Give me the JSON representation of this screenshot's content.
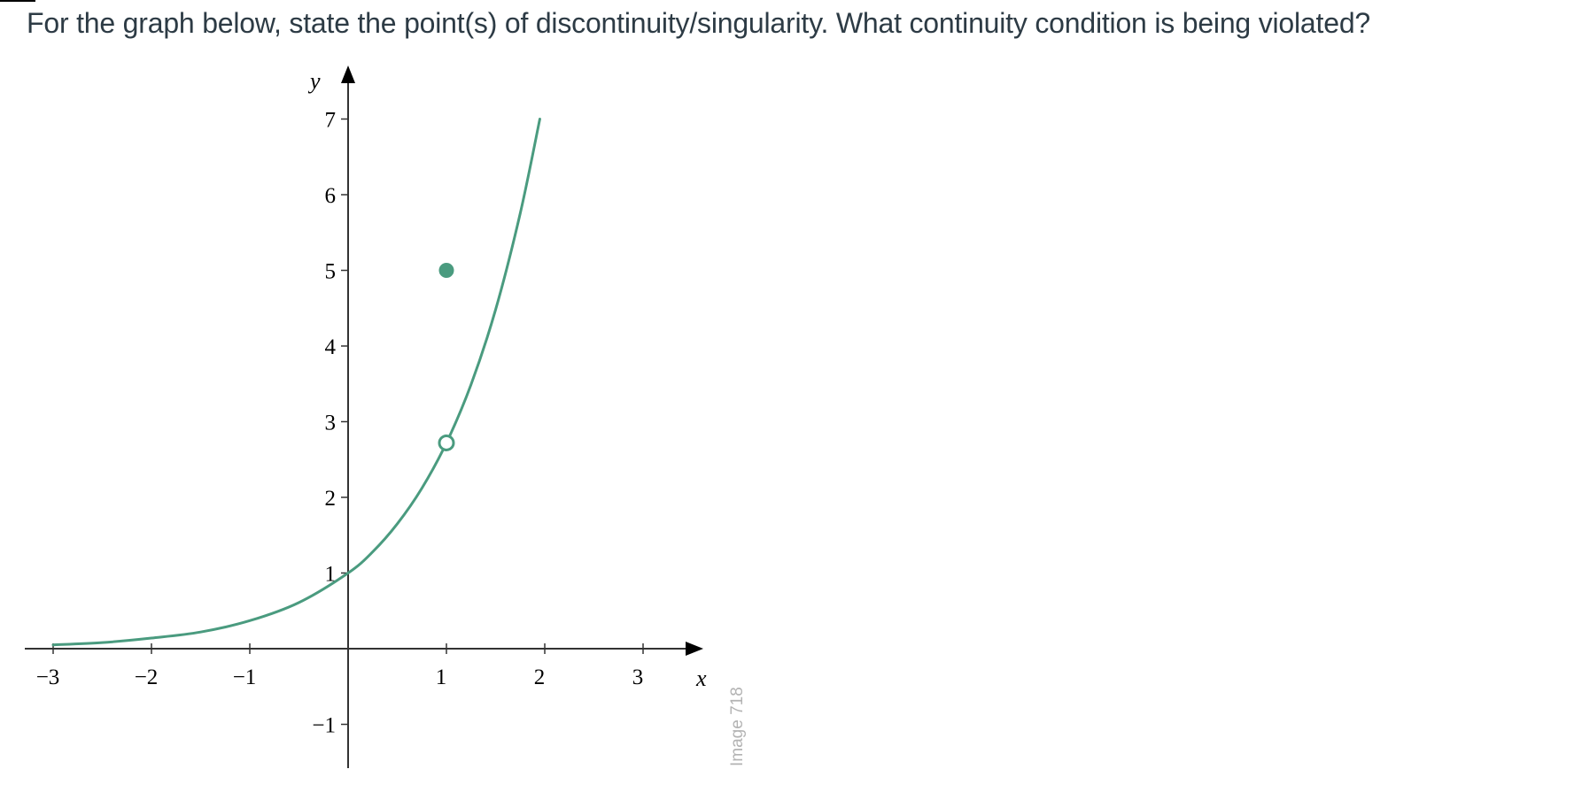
{
  "question": {
    "text": "For the graph below, state the point(s) of discontinuity/singularity.  What continuity condition is being violated?"
  },
  "watermark": "Image 718",
  "colors": {
    "curve": "#4a9b7f",
    "axis": "#333333",
    "question_text": "#2d3b45"
  },
  "chart_data": {
    "type": "line",
    "title": "",
    "xlabel": "x",
    "ylabel": "y",
    "xlim": [
      -3,
      3.5
    ],
    "ylim": [
      -1.5,
      7.5
    ],
    "x_ticks": [
      {
        "value": -3,
        "label": "−3"
      },
      {
        "value": -2,
        "label": "−2"
      },
      {
        "value": -1,
        "label": "−1"
      },
      {
        "value": 1,
        "label": "1"
      },
      {
        "value": 2,
        "label": "2"
      },
      {
        "value": 3,
        "label": "3"
      }
    ],
    "y_ticks": [
      {
        "value": -1,
        "label": "−1"
      },
      {
        "value": 1,
        "label": "1"
      },
      {
        "value": 2,
        "label": "2"
      },
      {
        "value": 3,
        "label": "3"
      },
      {
        "value": 4,
        "label": "4"
      },
      {
        "value": 5,
        "label": "5"
      },
      {
        "value": 6,
        "label": "6"
      },
      {
        "value": 7,
        "label": "7"
      }
    ],
    "series": [
      {
        "x": [
          -3,
          -2.5,
          -2,
          -1.5,
          -1,
          -0.5,
          0,
          0.25,
          0.5,
          0.75,
          1,
          1.25,
          1.5,
          1.75,
          1.95
        ],
        "y": [
          0.05,
          0.08,
          0.14,
          0.22,
          0.37,
          0.61,
          1.0,
          1.28,
          1.65,
          2.12,
          2.72,
          3.49,
          4.48,
          5.75,
          7.0
        ]
      }
    ],
    "open_points": [
      {
        "x": 1,
        "y": 2.72
      }
    ],
    "closed_points": [
      {
        "x": 1,
        "y": 5
      }
    ],
    "grid": false,
    "legend": "none"
  }
}
